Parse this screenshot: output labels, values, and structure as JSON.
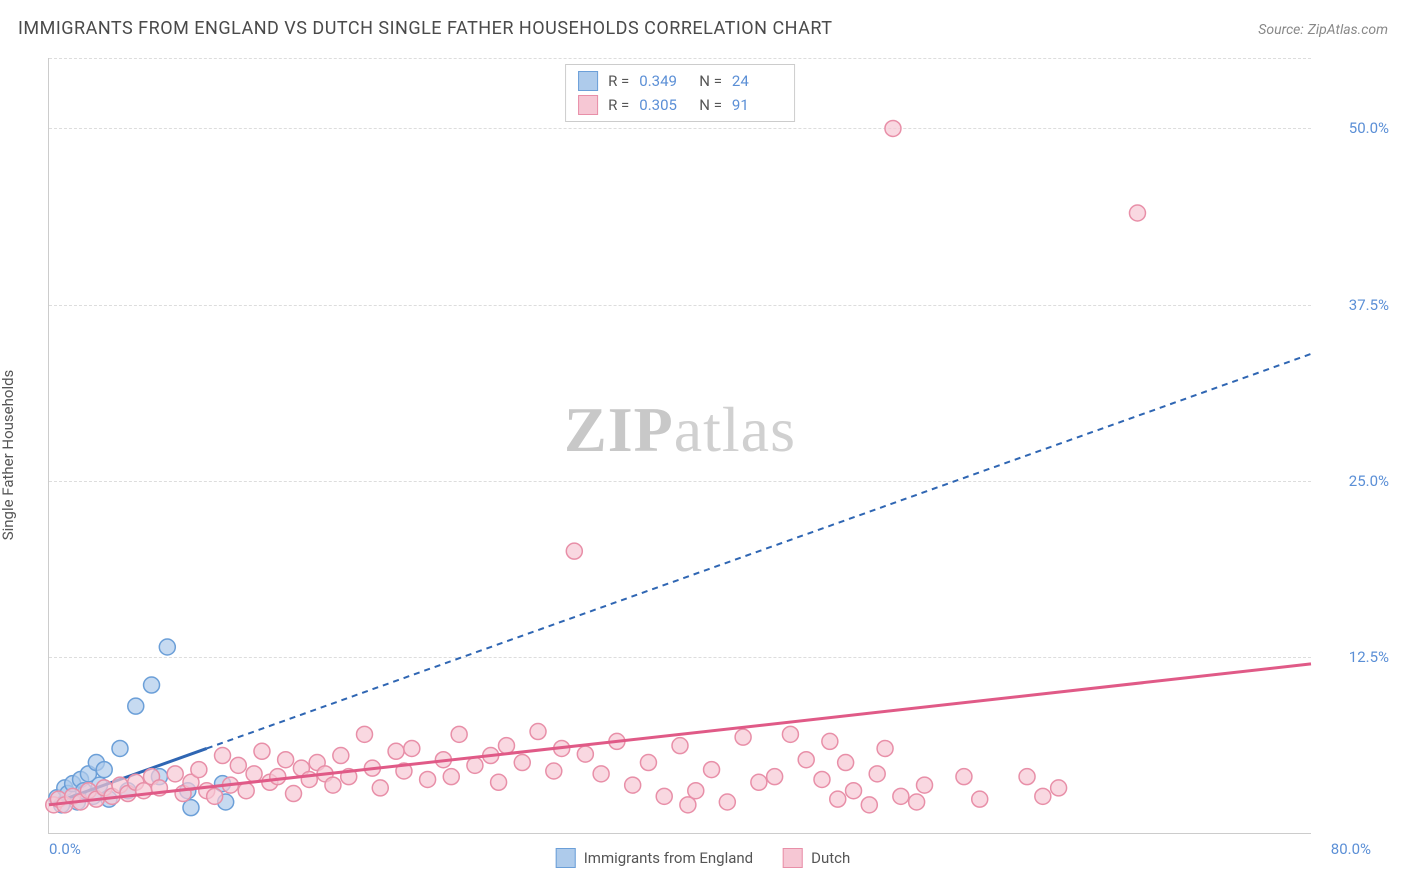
{
  "title": "IMMIGRANTS FROM ENGLAND VS DUTCH SINGLE FATHER HOUSEHOLDS CORRELATION CHART",
  "source_label": "Source:",
  "source_name": "ZipAtlas.com",
  "y_axis_label": "Single Father Households",
  "watermark_bold": "ZIP",
  "watermark_light": "atlas",
  "chart": {
    "type": "scatter",
    "xlim": [
      0,
      80
    ],
    "ylim": [
      0,
      55
    ],
    "x_tick_min_label": "0.0%",
    "x_tick_max_label": "80.0%",
    "y_ticks": [
      {
        "value": 12.5,
        "label": "12.5%"
      },
      {
        "value": 25.0,
        "label": "25.0%"
      },
      {
        "value": 37.5,
        "label": "37.5%"
      },
      {
        "value": 50.0,
        "label": "50.0%"
      }
    ],
    "marker_radius": 8,
    "marker_stroke_width": 1.5,
    "grid_color": "#dddddd",
    "series": [
      {
        "key": "england",
        "label": "Immigrants from England",
        "fill": "#aecbeb",
        "stroke": "#6b9fd8",
        "line_color": "#2f66b3",
        "line_dash": "6,5",
        "line_solid_until_x": 10,
        "R": "0.349",
        "N": "24",
        "trend": {
          "x1": 0,
          "y1": 2.0,
          "x2": 80,
          "y2": 34.0
        },
        "points": [
          [
            0.5,
            2.5
          ],
          [
            0.8,
            2.0
          ],
          [
            1.0,
            3.2
          ],
          [
            1.2,
            2.8
          ],
          [
            1.5,
            3.5
          ],
          [
            1.8,
            2.2
          ],
          [
            2.0,
            3.8
          ],
          [
            2.2,
            3.0
          ],
          [
            2.5,
            4.2
          ],
          [
            2.8,
            2.6
          ],
          [
            3.0,
            5.0
          ],
          [
            3.2,
            3.4
          ],
          [
            3.5,
            4.5
          ],
          [
            3.8,
            2.4
          ],
          [
            4.5,
            6.0
          ],
          [
            5.0,
            3.0
          ],
          [
            5.5,
            9.0
          ],
          [
            6.5,
            10.5
          ],
          [
            7.0,
            4.0
          ],
          [
            7.5,
            13.2
          ],
          [
            8.8,
            3.0
          ],
          [
            9.0,
            1.8
          ],
          [
            11.0,
            3.5
          ],
          [
            11.2,
            2.2
          ]
        ]
      },
      {
        "key": "dutch",
        "label": "Dutch",
        "fill": "#f6c7d4",
        "stroke": "#e88fa8",
        "line_color": "#e05a87",
        "line_dash": "",
        "line_solid_until_x": 80,
        "R": "0.305",
        "N": "91",
        "trend": {
          "x1": 0,
          "y1": 2.0,
          "x2": 80,
          "y2": 12.0
        },
        "points": [
          [
            0.3,
            2.0
          ],
          [
            0.6,
            2.4
          ],
          [
            1.0,
            2.0
          ],
          [
            1.5,
            2.6
          ],
          [
            2.0,
            2.2
          ],
          [
            2.5,
            3.0
          ],
          [
            3.0,
            2.4
          ],
          [
            3.5,
            3.2
          ],
          [
            4.0,
            2.6
          ],
          [
            4.5,
            3.4
          ],
          [
            5.0,
            2.8
          ],
          [
            5.5,
            3.6
          ],
          [
            6.0,
            3.0
          ],
          [
            6.5,
            4.0
          ],
          [
            7.0,
            3.2
          ],
          [
            8.0,
            4.2
          ],
          [
            8.5,
            2.8
          ],
          [
            9.0,
            3.6
          ],
          [
            9.5,
            4.5
          ],
          [
            10.0,
            3.0
          ],
          [
            10.5,
            2.6
          ],
          [
            11.0,
            5.5
          ],
          [
            11.5,
            3.4
          ],
          [
            12.0,
            4.8
          ],
          [
            12.5,
            3.0
          ],
          [
            13.0,
            4.2
          ],
          [
            13.5,
            5.8
          ],
          [
            14.0,
            3.6
          ],
          [
            14.5,
            4.0
          ],
          [
            15.0,
            5.2
          ],
          [
            15.5,
            2.8
          ],
          [
            16.0,
            4.6
          ],
          [
            16.5,
            3.8
          ],
          [
            17.0,
            5.0
          ],
          [
            17.5,
            4.2
          ],
          [
            18.0,
            3.4
          ],
          [
            18.5,
            5.5
          ],
          [
            19.0,
            4.0
          ],
          [
            20.0,
            7.0
          ],
          [
            20.5,
            4.6
          ],
          [
            21.0,
            3.2
          ],
          [
            22.0,
            5.8
          ],
          [
            22.5,
            4.4
          ],
          [
            23.0,
            6.0
          ],
          [
            24.0,
            3.8
          ],
          [
            25.0,
            5.2
          ],
          [
            25.5,
            4.0
          ],
          [
            26.0,
            7.0
          ],
          [
            27.0,
            4.8
          ],
          [
            28.0,
            5.5
          ],
          [
            28.5,
            3.6
          ],
          [
            29.0,
            6.2
          ],
          [
            30.0,
            5.0
          ],
          [
            31.0,
            7.2
          ],
          [
            32.0,
            4.4
          ],
          [
            32.5,
            6.0
          ],
          [
            33.3,
            20.0
          ],
          [
            34.0,
            5.6
          ],
          [
            35.0,
            4.2
          ],
          [
            36.0,
            6.5
          ],
          [
            37.0,
            3.4
          ],
          [
            38.0,
            5.0
          ],
          [
            39.0,
            2.6
          ],
          [
            40.0,
            6.2
          ],
          [
            40.5,
            2.0
          ],
          [
            41.0,
            3.0
          ],
          [
            42.0,
            4.5
          ],
          [
            43.0,
            2.2
          ],
          [
            44.0,
            6.8
          ],
          [
            45.0,
            3.6
          ],
          [
            46.0,
            4.0
          ],
          [
            47.0,
            7.0
          ],
          [
            48.0,
            5.2
          ],
          [
            49.0,
            3.8
          ],
          [
            49.5,
            6.5
          ],
          [
            50.0,
            2.4
          ],
          [
            50.5,
            5.0
          ],
          [
            51.0,
            3.0
          ],
          [
            52.0,
            2.0
          ],
          [
            52.5,
            4.2
          ],
          [
            53.0,
            6.0
          ],
          [
            54.0,
            2.6
          ],
          [
            55.0,
            2.2
          ],
          [
            55.5,
            3.4
          ],
          [
            53.5,
            50.0
          ],
          [
            58.0,
            4.0
          ],
          [
            59.0,
            2.4
          ],
          [
            62.0,
            4.0
          ],
          [
            63.0,
            2.6
          ],
          [
            69.0,
            44.0
          ],
          [
            64.0,
            3.2
          ]
        ]
      }
    ]
  }
}
